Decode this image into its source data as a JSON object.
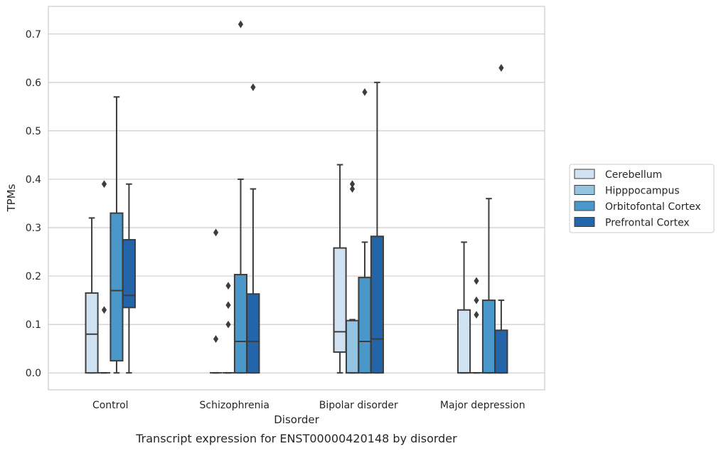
{
  "chart_data": {
    "type": "boxplot",
    "caption": "Transcript expression for ENST00000420148 by disorder",
    "xlabel": "Disorder",
    "ylabel": "TPMs",
    "ylim": [
      -0.035,
      0.757
    ],
    "yticks": [
      "0.0",
      "0.1",
      "0.2",
      "0.3",
      "0.4",
      "0.5",
      "0.6",
      "0.7"
    ],
    "grid": "horizontal",
    "legend_position": "right",
    "categories": [
      "Control",
      "Schizophrenia",
      "Bipolar disorder",
      "Major depression"
    ],
    "series": [
      {
        "name": "Cerebellum",
        "color": "#d0e1f2",
        "boxes": [
          {
            "whislo": 0.0,
            "q1": 0.0,
            "med": 0.08,
            "q3": 0.165,
            "whishi": 0.32,
            "fliers": []
          },
          {
            "whislo": 0.0,
            "q1": 0.0,
            "med": 0.0,
            "q3": 0.0,
            "whishi": 0.0,
            "fliers": [
              0.07,
              0.29
            ]
          },
          {
            "whislo": 0.0,
            "q1": 0.043,
            "med": 0.085,
            "q3": 0.258,
            "whishi": 0.43,
            "fliers": []
          },
          {
            "whislo": 0.0,
            "q1": 0.0,
            "med": 0.0,
            "q3": 0.13,
            "whishi": 0.27,
            "fliers": []
          }
        ]
      },
      {
        "name": "Hipppocampus",
        "color": "#94c4df",
        "boxes": [
          {
            "whislo": 0.0,
            "q1": 0.0,
            "med": 0.0,
            "q3": 0.0,
            "whishi": 0.0,
            "fliers": [
              0.13,
              0.39
            ]
          },
          {
            "whislo": 0.0,
            "q1": 0.0,
            "med": 0.0,
            "q3": 0.0,
            "whishi": 0.0,
            "fliers": [
              0.1,
              0.14,
              0.18
            ]
          },
          {
            "whislo": 0.0,
            "q1": 0.0,
            "med": 0.0,
            "q3": 0.108,
            "whishi": 0.11,
            "fliers": [
              0.38,
              0.39
            ]
          },
          {
            "whislo": 0.0,
            "q1": 0.0,
            "med": 0.0,
            "q3": 0.0,
            "whishi": 0.0,
            "fliers": [
              0.12,
              0.15,
              0.19
            ]
          }
        ]
      },
      {
        "name": "Orbitofontal Cortex",
        "color": "#4a98c9",
        "boxes": [
          {
            "whislo": 0.0,
            "q1": 0.025,
            "med": 0.17,
            "q3": 0.33,
            "whishi": 0.57,
            "fliers": []
          },
          {
            "whislo": 0.0,
            "q1": 0.0,
            "med": 0.065,
            "q3": 0.203,
            "whishi": 0.4,
            "fliers": [
              0.72
            ]
          },
          {
            "whislo": 0.0,
            "q1": 0.0,
            "med": 0.065,
            "q3": 0.197,
            "whishi": 0.27,
            "fliers": [
              0.58
            ]
          },
          {
            "whislo": 0.0,
            "q1": 0.0,
            "med": 0.0,
            "q3": 0.15,
            "whishi": 0.36,
            "fliers": []
          }
        ]
      },
      {
        "name": "Prefrontal Cortex",
        "color": "#2464a8",
        "boxes": [
          {
            "whislo": 0.0,
            "q1": 0.135,
            "med": 0.16,
            "q3": 0.275,
            "whishi": 0.39,
            "fliers": []
          },
          {
            "whislo": 0.0,
            "q1": 0.0,
            "med": 0.065,
            "q3": 0.163,
            "whishi": 0.38,
            "fliers": [
              0.59
            ]
          },
          {
            "whislo": 0.0,
            "q1": 0.0,
            "med": 0.07,
            "q3": 0.282,
            "whishi": 0.6,
            "fliers": []
          },
          {
            "whislo": 0.0,
            "q1": 0.0,
            "med": 0.0,
            "q3": 0.088,
            "whishi": 0.15,
            "fliers": [
              0.63
            ]
          }
        ]
      }
    ]
  }
}
